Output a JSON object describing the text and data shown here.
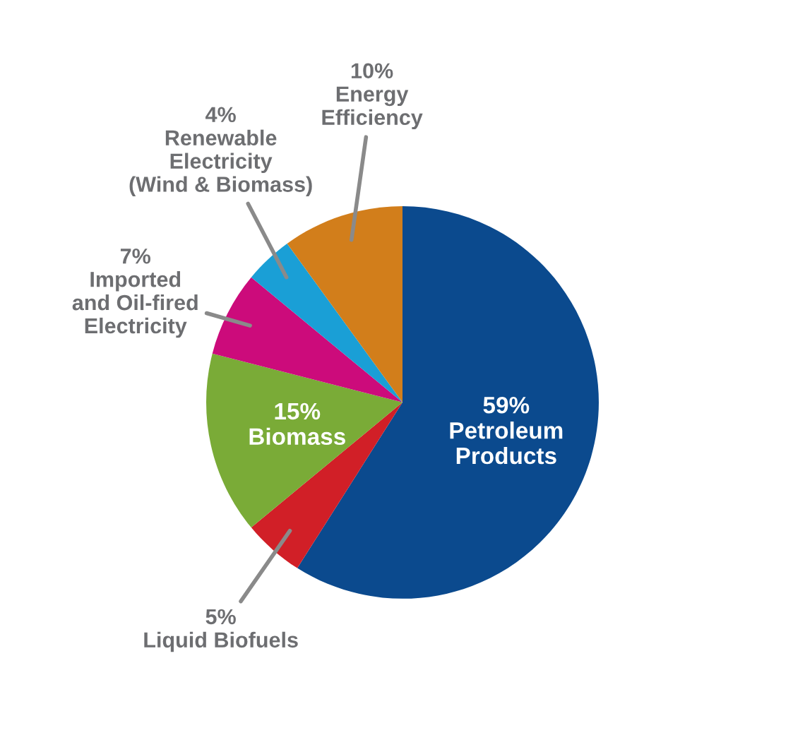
{
  "chart_data": {
    "type": "pie",
    "categories": [
      "Petroleum\nProducts",
      "Liquid Biofuels",
      "Biomass",
      "Imported\nand Oil-fired\nElectricity",
      "Renewable\nElectricity\n(Wind & Biomass)",
      "Energy\nEfficiency"
    ],
    "values": [
      59,
      5,
      15,
      7,
      4,
      10
    ],
    "value_labels": [
      "59%",
      "5%",
      "15%",
      "7%",
      "4%",
      "10%"
    ],
    "colors": [
      "#0b4a8e",
      "#d11f27",
      "#7aab37",
      "#cc0b7b",
      "#1a9fd6",
      "#d27e1b"
    ],
    "legend": false
  }
}
